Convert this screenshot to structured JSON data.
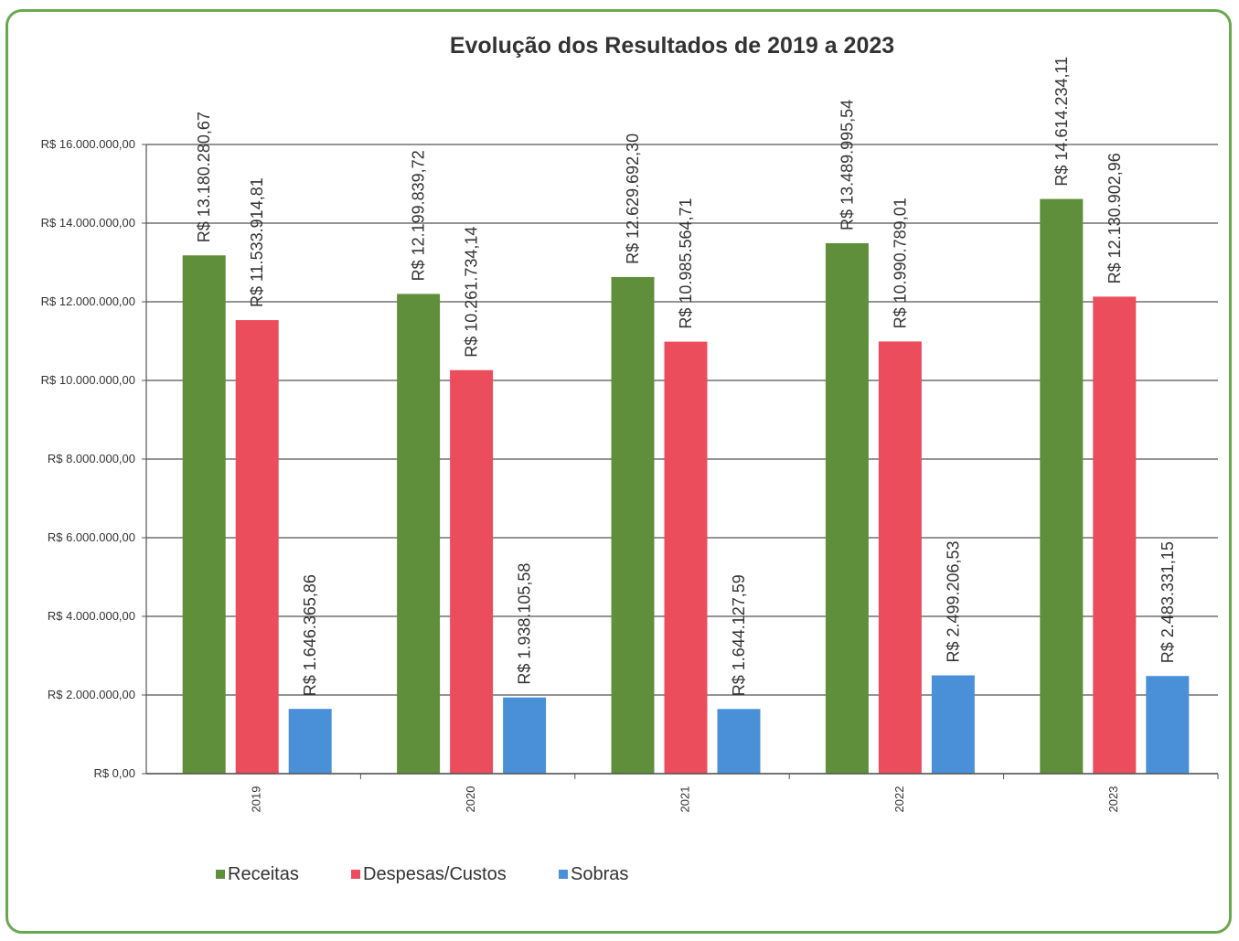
{
  "chart_data": {
    "type": "bar",
    "title": "Evolução dos Resultados de 2019 a 2023",
    "categories": [
      "2019",
      "2020",
      "2021",
      "2022",
      "2023"
    ],
    "ylim": [
      0,
      16000000
    ],
    "yticks": [
      0,
      2000000,
      4000000,
      6000000,
      8000000,
      10000000,
      12000000,
      14000000,
      16000000
    ],
    "ytick_labels": [
      "R$ 0,00",
      "R$ 2.000.000,00",
      "R$ 4.000.000,00",
      "R$ 6.000.000,00",
      "R$ 8.000.000,00",
      "R$ 10.000.000,00",
      "R$ 12.000.000,00",
      "R$ 14.000.000,00",
      "R$ 16.000.000,00"
    ],
    "grid": true,
    "legend_position": "bottom-left",
    "series": [
      {
        "name": "Receitas",
        "color": "#5f8f3a",
        "values": [
          13180280.67,
          12199839.72,
          12629692.3,
          13489995.54,
          14614234.11
        ],
        "labels": [
          "R$ 13.180.280,67",
          "R$ 12.199.839,72",
          "R$ 12.629.692,30",
          "R$ 13.489.995,54",
          "R$ 14.614.234,11"
        ]
      },
      {
        "name": "Despesas/Custos",
        "color": "#ec4d5d",
        "values": [
          11533914.81,
          10261734.14,
          10985564.71,
          10990789.01,
          12130902.96
        ],
        "labels": [
          "R$ 11.533.914,81",
          "R$ 10.261.734,14",
          "R$ 10.985.564,71",
          "R$ 10.990.789,01",
          "R$ 12.130.902,96"
        ]
      },
      {
        "name": "Sobras",
        "color": "#4a90d9",
        "values": [
          1646365.86,
          1938105.58,
          1644127.59,
          2499206.53,
          2483331.15
        ],
        "labels": [
          "R$ 1.646.365,86",
          "R$ 1.938.105,58",
          "R$ 1.644.127,59",
          "R$ 2.499.206,53",
          "R$ 2.483.331,15"
        ]
      }
    ]
  }
}
